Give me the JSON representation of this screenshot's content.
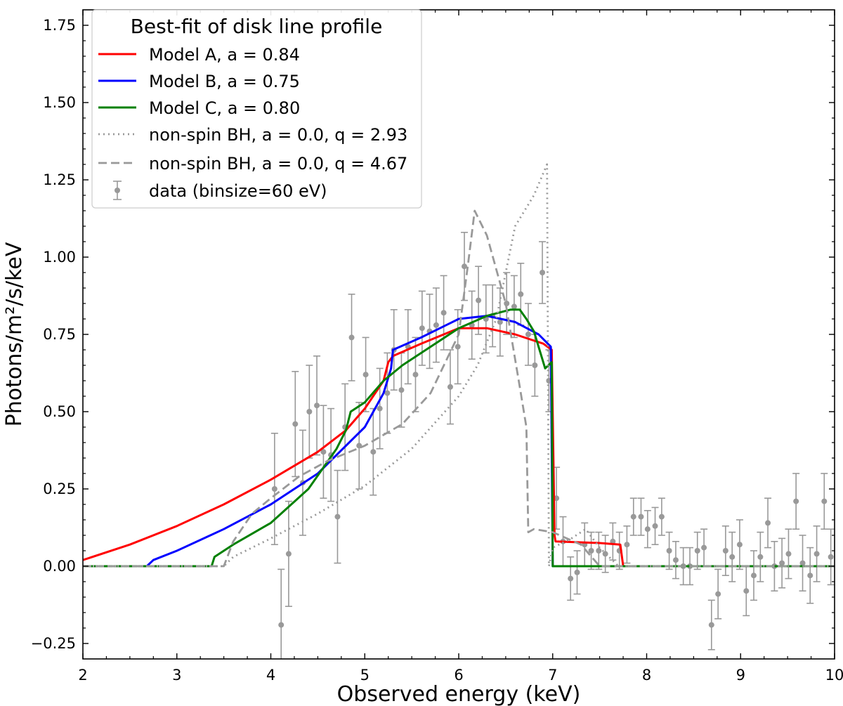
{
  "chart_data": {
    "type": "line",
    "title": "",
    "xlabel": "Observed energy (keV)",
    "ylabel": "Photons/m²/s/keV",
    "xlim": [
      2,
      10
    ],
    "ylim": [
      -0.3,
      1.8
    ],
    "x_ticks": [
      2,
      3,
      4,
      5,
      6,
      7,
      8,
      9,
      10
    ],
    "x_tick_labels": [
      "2",
      "3",
      "4",
      "5",
      "6",
      "7",
      "8",
      "9",
      "10"
    ],
    "y_ticks": [
      -0.25,
      0.0,
      0.25,
      0.5,
      0.75,
      1.0,
      1.25,
      1.5,
      1.75
    ],
    "y_tick_labels": [
      "−0.25",
      "0.00",
      "0.25",
      "0.50",
      "0.75",
      "1.00",
      "1.25",
      "1.50",
      "1.75"
    ],
    "grid": false,
    "legend": {
      "title": "Best-fit of disk line profile",
      "placement": "top-left",
      "entries": [
        {
          "label": "Model A, a = 0.84",
          "style": "solid",
          "color": "#ff0000"
        },
        {
          "label": "Model B, a = 0.75",
          "style": "solid",
          "color": "#0000ff"
        },
        {
          "label": "Model C, a = 0.80",
          "style": "solid",
          "color": "#008000"
        },
        {
          "label": "non-spin BH, a = 0.0, q = 2.93",
          "style": "dotted",
          "color": "#999999"
        },
        {
          "label": "non-spin BH, a = 0.0, q = 4.67",
          "style": "dashed",
          "color": "#999999"
        },
        {
          "label": "data (binsize=60 eV)",
          "style": "errorbar",
          "color": "#999999"
        }
      ]
    },
    "series": [
      {
        "name": "Model A, a = 0.84",
        "color": "#ff0000",
        "style": "solid",
        "x": [
          2.0,
          2.5,
          3.0,
          3.5,
          4.0,
          4.5,
          4.8,
          5.0,
          5.2,
          5.25,
          5.3,
          5.6,
          6.0,
          6.3,
          6.6,
          6.9,
          6.99,
          7.02,
          7.03,
          7.5,
          7.72,
          7.75,
          10.0
        ],
        "y": [
          0.02,
          0.07,
          0.13,
          0.2,
          0.28,
          0.37,
          0.44,
          0.51,
          0.6,
          0.66,
          0.68,
          0.72,
          0.77,
          0.77,
          0.75,
          0.72,
          0.7,
          0.1,
          0.08,
          0.075,
          0.07,
          0.0,
          0.0
        ]
      },
      {
        "name": "Model B, a = 0.75",
        "color": "#0000ff",
        "style": "solid",
        "x": [
          2.0,
          2.68,
          2.75,
          3.0,
          3.5,
          4.0,
          4.5,
          5.0,
          5.2,
          5.28,
          5.3,
          5.6,
          6.0,
          6.3,
          6.6,
          6.85,
          6.98,
          7.0,
          10.0
        ],
        "y": [
          0.0,
          0.0,
          0.02,
          0.05,
          0.12,
          0.2,
          0.3,
          0.45,
          0.56,
          0.64,
          0.7,
          0.74,
          0.8,
          0.81,
          0.79,
          0.75,
          0.71,
          0.0,
          0.0
        ]
      },
      {
        "name": "Model C, a = 0.80",
        "color": "#008000",
        "style": "solid",
        "x": [
          2.0,
          3.37,
          3.4,
          3.6,
          4.0,
          4.4,
          4.7,
          4.8,
          4.85,
          5.0,
          5.2,
          5.4,
          5.7,
          6.0,
          6.3,
          6.55,
          6.65,
          6.72,
          6.8,
          6.92,
          6.99,
          7.0,
          10.0
        ],
        "y": [
          0.0,
          0.0,
          0.03,
          0.07,
          0.14,
          0.25,
          0.38,
          0.44,
          0.5,
          0.53,
          0.6,
          0.65,
          0.71,
          0.77,
          0.81,
          0.83,
          0.83,
          0.8,
          0.76,
          0.64,
          0.66,
          0.0,
          0.0
        ]
      },
      {
        "name": "non-spin BH, a = 0.0, q = 2.93",
        "color": "#999999",
        "style": "dotted",
        "x": [
          2.0,
          3.5,
          3.6,
          4.0,
          4.5,
          5.0,
          5.5,
          6.0,
          6.2,
          6.4,
          6.6,
          6.8,
          6.94,
          6.96,
          7.0,
          7.2,
          7.35,
          7.5,
          7.7,
          10.0
        ],
        "y": [
          0.0,
          0.0,
          0.03,
          0.09,
          0.17,
          0.26,
          0.38,
          0.55,
          0.65,
          0.8,
          1.1,
          1.2,
          1.3,
          0.0,
          0.06,
          0.09,
          0.12,
          0.06,
          0.0,
          0.0
        ]
      },
      {
        "name": "non-spin BH, a = 0.0, q = 4.67",
        "color": "#999999",
        "style": "dashed",
        "x": [
          2.0,
          3.5,
          3.6,
          3.8,
          4.0,
          4.3,
          4.6,
          5.0,
          5.4,
          5.7,
          6.0,
          6.1,
          6.17,
          6.3,
          6.5,
          6.65,
          6.72,
          6.74,
          6.8,
          7.0,
          7.3,
          7.5,
          10.0
        ],
        "y": [
          0.0,
          0.0,
          0.08,
          0.17,
          0.22,
          0.29,
          0.34,
          0.39,
          0.46,
          0.56,
          0.75,
          0.98,
          1.15,
          1.07,
          0.85,
          0.58,
          0.45,
          0.11,
          0.12,
          0.11,
          0.07,
          0.0,
          0.0
        ]
      }
    ],
    "data_points": {
      "name": "data (binsize=60 eV)",
      "color": "#999999",
      "x": [
        4.04,
        4.11,
        4.19,
        4.26,
        4.34,
        4.41,
        4.49,
        4.56,
        4.64,
        4.71,
        4.79,
        4.86,
        4.94,
        5.01,
        5.09,
        5.16,
        5.24,
        5.31,
        5.39,
        5.46,
        5.54,
        5.61,
        5.69,
        5.76,
        5.84,
        5.91,
        5.99,
        6.06,
        6.14,
        6.21,
        6.29,
        6.36,
        6.44,
        6.51,
        6.59,
        6.66,
        6.74,
        6.81,
        6.89,
        6.96,
        7.04,
        7.11,
        7.19,
        7.26,
        7.34,
        7.41,
        7.49,
        7.56,
        7.64,
        7.71,
        7.79,
        7.86,
        7.94,
        8.01,
        8.09,
        8.16,
        8.24,
        8.31,
        8.39,
        8.46,
        8.54,
        8.61,
        8.69,
        8.76,
        8.84,
        8.91,
        8.99,
        9.06,
        9.14,
        9.21,
        9.29,
        9.36,
        9.44,
        9.51,
        9.59,
        9.66,
        9.74,
        9.81,
        9.89,
        9.96
      ],
      "y": [
        0.25,
        -0.19,
        0.04,
        0.46,
        0.27,
        0.5,
        0.52,
        0.37,
        0.36,
        0.16,
        0.45,
        0.74,
        0.39,
        0.62,
        0.37,
        0.51,
        0.56,
        0.7,
        0.57,
        0.71,
        0.62,
        0.77,
        0.76,
        0.78,
        0.82,
        0.58,
        0.71,
        0.97,
        0.78,
        0.86,
        0.8,
        0.81,
        0.79,
        0.85,
        0.84,
        0.88,
        0.75,
        0.65,
        0.95,
        0.6,
        0.22,
        0.08,
        -0.04,
        -0.02,
        0.07,
        0.05,
        0.05,
        0.04,
        0.08,
        0.05,
        0.07,
        0.16,
        0.16,
        0.12,
        0.13,
        0.16,
        0.05,
        0.02,
        0.0,
        0.0,
        0.05,
        0.06,
        -0.19,
        -0.09,
        0.05,
        0.03,
        0.07,
        -0.08,
        -0.03,
        0.03,
        0.14,
        0.0,
        0.01,
        0.04,
        0.21,
        0.01,
        -0.03,
        0.04,
        0.21,
        0.03
      ],
      "err": [
        0.18,
        0.18,
        0.17,
        0.17,
        0.17,
        0.15,
        0.16,
        0.15,
        0.15,
        0.15,
        0.14,
        0.14,
        0.14,
        0.12,
        0.14,
        0.13,
        0.13,
        0.13,
        0.12,
        0.12,
        0.12,
        0.12,
        0.12,
        0.12,
        0.12,
        0.12,
        0.12,
        0.11,
        0.11,
        0.11,
        0.11,
        0.1,
        0.11,
        0.1,
        0.1,
        0.1,
        0.1,
        0.1,
        0.1,
        0.1,
        0.1,
        0.08,
        0.07,
        0.07,
        0.07,
        0.06,
        0.06,
        0.06,
        0.06,
        0.06,
        0.06,
        0.06,
        0.06,
        0.06,
        0.06,
        0.06,
        0.06,
        0.06,
        0.06,
        0.06,
        0.06,
        0.06,
        0.08,
        0.08,
        0.08,
        0.08,
        0.08,
        0.08,
        0.08,
        0.08,
        0.08,
        0.08,
        0.08,
        0.08,
        0.09,
        0.09,
        0.09,
        0.09,
        0.09,
        0.09
      ]
    }
  }
}
